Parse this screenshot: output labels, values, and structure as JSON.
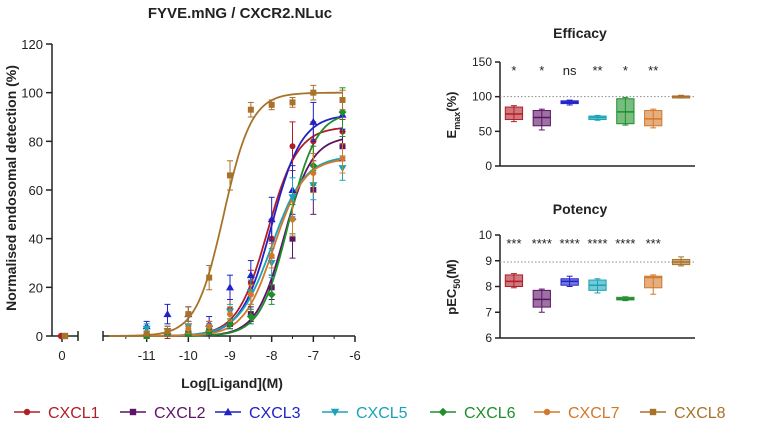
{
  "figure": {
    "legend": [
      {
        "name": "CXCL1",
        "color": "#B01E27",
        "marker": "circle"
      },
      {
        "name": "CXCL2",
        "color": "#5C1466",
        "marker": "square"
      },
      {
        "name": "CXCL3",
        "color": "#1F22C8",
        "marker": "triangle-up"
      },
      {
        "name": "CXCL5",
        "color": "#1AA3B8",
        "marker": "triangle-down"
      },
      {
        "name": "CXCL6",
        "color": "#1E8F2A",
        "marker": "diamond"
      },
      {
        "name": "CXCL7",
        "color": "#D2782A",
        "marker": "circle"
      },
      {
        "name": "CXCL8",
        "color": "#A8722A",
        "marker": "square"
      }
    ],
    "reference_line_color": "#8A8A8A"
  },
  "chart_data": [
    {
      "id": "dose-response",
      "type": "line",
      "title": "FYVE.mNG / CXCR2.NLuc",
      "xlabel": "Log[Ligand](M)",
      "ylabel": "Normalised endosomal detection (%)",
      "xlim": [
        -12,
        -6
      ],
      "ylim": [
        0,
        120
      ],
      "yticks": [
        0,
        20,
        40,
        60,
        80,
        100,
        120
      ],
      "xticks": [
        -11,
        -10,
        -9,
        -8,
        -7,
        -6
      ],
      "xbreak": {
        "label": "0",
        "value": 0,
        "y": 0
      },
      "x": [
        -11,
        -10.5,
        -10,
        -9.5,
        -9,
        -8.5,
        -8,
        -7.5,
        -7,
        -6.3
      ],
      "series": [
        {
          "name": "CXCL1",
          "top": 86,
          "logEC50": -8.1,
          "hill": 1.2,
          "values": [
            1,
            1,
            2,
            4,
            11,
            22,
            40,
            78,
            80,
            84
          ],
          "errors": [
            1,
            2,
            2,
            2,
            4,
            5,
            8,
            10,
            8,
            5
          ]
        },
        {
          "name": "CXCL2",
          "top": 82,
          "logEC50": -7.7,
          "hill": 1.3,
          "values": [
            0,
            1,
            1,
            2,
            5,
            9,
            20,
            40,
            60,
            78
          ],
          "errors": [
            1,
            1,
            1,
            2,
            2,
            3,
            5,
            8,
            10,
            6
          ]
        },
        {
          "name": "CXCL3",
          "top": 91,
          "logEC50": -8.0,
          "hill": 1.2,
          "values": [
            4,
            9,
            9,
            5,
            20,
            25,
            48,
            60,
            88,
            91
          ],
          "errors": [
            2,
            4,
            3,
            3,
            5,
            6,
            9,
            10,
            8,
            6
          ]
        },
        {
          "name": "CXCL5",
          "top": 74,
          "logEC50": -8.0,
          "hill": 1.1,
          "values": [
            3,
            2,
            4,
            3,
            10,
            18,
            30,
            57,
            62,
            69
          ],
          "errors": [
            2,
            2,
            2,
            2,
            3,
            5,
            6,
            8,
            6,
            5
          ]
        },
        {
          "name": "CXCL6",
          "top": 92,
          "logEC50": -7.6,
          "hill": 1.3,
          "values": [
            0,
            1,
            1,
            2,
            5,
            8,
            17,
            48,
            70,
            92
          ],
          "errors": [
            1,
            1,
            1,
            1,
            2,
            3,
            4,
            6,
            8,
            10
          ]
        },
        {
          "name": "CXCL7",
          "top": 73,
          "logEC50": -7.95,
          "hill": 1.2,
          "values": [
            1,
            2,
            3,
            4,
            9,
            17,
            33,
            48,
            67,
            73
          ],
          "errors": [
            1,
            2,
            2,
            2,
            3,
            4,
            5,
            7,
            8,
            6
          ]
        },
        {
          "name": "CXCL8",
          "top": 100,
          "logEC50": -9.15,
          "hill": 1.3,
          "values": [
            1,
            2,
            9,
            24,
            66,
            93,
            95,
            96,
            100,
            97
          ],
          "errors": [
            1,
            2,
            3,
            5,
            6,
            3,
            2,
            2,
            3,
            4
          ]
        }
      ],
      "break_values": [
        {
          "name": "CXCL1",
          "value": 0
        },
        {
          "name": "CXCL8",
          "value": 0
        }
      ]
    },
    {
      "id": "efficacy",
      "type": "box",
      "title": "Efficacy",
      "ylabel": "Emax (%)",
      "ylabel_main": "E",
      "ylabel_sub": "max",
      "ylabel_tail": "(%)",
      "ylim": [
        0,
        150
      ],
      "yticks": [
        0,
        50,
        100,
        150
      ],
      "reference": 100,
      "categories": [
        "CXCL1",
        "CXCL2",
        "CXCL3",
        "CXCL5",
        "CXCL6",
        "CXCL7",
        "CXCL8"
      ],
      "boxes": [
        {
          "min": 64,
          "q1": 67,
          "median": 75,
          "q3": 85,
          "max": 87
        },
        {
          "min": 52,
          "q1": 58,
          "median": 70,
          "q3": 80,
          "max": 82
        },
        {
          "min": 88,
          "q1": 90,
          "median": 92,
          "q3": 94,
          "max": 95
        },
        {
          "min": 66,
          "q1": 67,
          "median": 70,
          "q3": 72,
          "max": 73
        },
        {
          "min": 59,
          "q1": 61,
          "median": 78,
          "q3": 97,
          "max": 99
        },
        {
          "min": 55,
          "q1": 58,
          "median": 68,
          "q3": 80,
          "max": 82
        },
        {
          "min": 98,
          "q1": 99,
          "median": 100,
          "q3": 101,
          "max": 102
        }
      ],
      "significance": [
        "*",
        "*",
        "ns",
        "**",
        "*",
        "**",
        ""
      ]
    },
    {
      "id": "potency",
      "type": "box",
      "title": "Potency",
      "ylabel": "pEC50 (M)",
      "ylabel_main": "pEC",
      "ylabel_sub": "50",
      "ylabel_tail": "(M)",
      "ylim": [
        6,
        10
      ],
      "yticks": [
        6,
        7,
        8,
        9,
        10
      ],
      "reference": 8.95,
      "categories": [
        "CXCL1",
        "CXCL2",
        "CXCL3",
        "CXCL5",
        "CXCL6",
        "CXCL7",
        "CXCL8"
      ],
      "boxes": [
        {
          "min": 7.95,
          "q1": 8.0,
          "median": 8.2,
          "q3": 8.45,
          "max": 8.5
        },
        {
          "min": 7.0,
          "q1": 7.2,
          "median": 7.5,
          "q3": 7.85,
          "max": 7.9
        },
        {
          "min": 8.0,
          "q1": 8.05,
          "median": 8.2,
          "q3": 8.3,
          "max": 8.4
        },
        {
          "min": 7.75,
          "q1": 7.85,
          "median": 8.05,
          "q3": 8.25,
          "max": 8.3
        },
        {
          "min": 7.45,
          "q1": 7.48,
          "median": 7.52,
          "q3": 7.58,
          "max": 7.6
        },
        {
          "min": 7.7,
          "q1": 7.95,
          "median": 8.35,
          "q3": 8.4,
          "max": 8.45
        },
        {
          "min": 8.8,
          "q1": 8.85,
          "median": 8.95,
          "q3": 9.05,
          "max": 9.15
        }
      ],
      "significance": [
        "***",
        "****",
        "****",
        "****",
        "****",
        "***",
        ""
      ]
    }
  ]
}
